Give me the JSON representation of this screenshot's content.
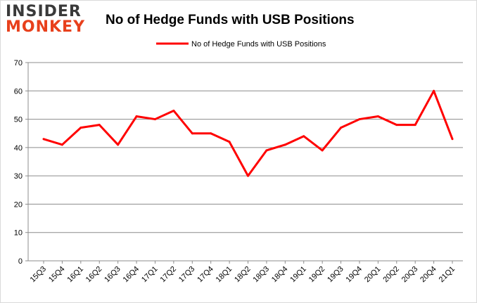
{
  "logo": {
    "line1": "INSIDER",
    "line2": "MONKEY"
  },
  "chart_data": {
    "type": "line",
    "title": "No of Hedge Funds with USB Positions",
    "categories": [
      "15Q3",
      "15Q4",
      "16Q1",
      "16Q2",
      "16Q3",
      "16Q4",
      "17Q1",
      "17Q2",
      "17Q3",
      "17Q4",
      "18Q1",
      "18Q2",
      "18Q3",
      "18Q4",
      "19Q1",
      "19Q2",
      "19Q3",
      "19Q4",
      "20Q1",
      "20Q2",
      "20Q3",
      "20Q4",
      "21Q1"
    ],
    "series": [
      {
        "name": "No of Hedge Funds with USB Positions",
        "color": "#ff0000",
        "values": [
          43,
          41,
          47,
          48,
          41,
          51,
          50,
          53,
          45,
          45,
          42,
          30,
          39,
          41,
          44,
          39,
          47,
          50,
          51,
          48,
          48,
          60,
          43
        ]
      }
    ],
    "ylim": [
      0,
      70
    ],
    "yticks": [
      0,
      10,
      20,
      30,
      40,
      50,
      60,
      70
    ],
    "grid": true,
    "legend": "top-center",
    "xlabel": "",
    "ylabel": ""
  }
}
